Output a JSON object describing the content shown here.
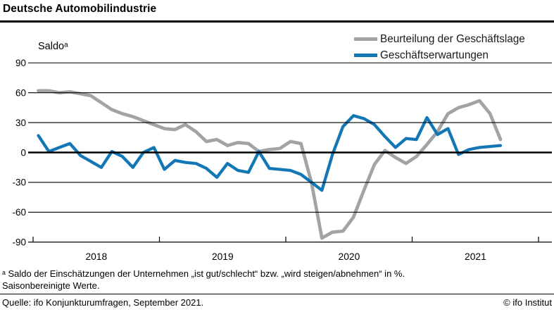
{
  "title": "Deutsche Automobilindustrie",
  "y_axis_label": "Saldoᵃ",
  "legend": [
    {
      "label": "Beurteilung der Geschäftslage",
      "color": "#a3a3a3"
    },
    {
      "label": "Geschäftserwartungen",
      "color": "#1377b6"
    }
  ],
  "footnotes": {
    "line1": "ᵃ Saldo der Einschätzungen der Unternehmen „ist gut/schlecht“ bzw. „wird steigen/abnehmen“ in %.",
    "line2": "Saisonbereinigte Werte."
  },
  "source": "Quelle: ifo Konjunkturumfragen, September 2021.",
  "copyright": "© ifo Institut",
  "chart_data": {
    "type": "line",
    "title": "Deutsche Automobilindustrie",
    "ylabel": "Saldo",
    "ylim": [
      -90,
      90
    ],
    "y_ticks": [
      90,
      60,
      30,
      0,
      -30,
      -60,
      -90
    ],
    "x_tick_labels": [
      "2018",
      "2019",
      "2020",
      "2021"
    ],
    "x_unit": "month",
    "x_start": "2018-01",
    "x_end": "2021-09",
    "grid": "horizontal-black",
    "legend_position": "top-right",
    "series": [
      {
        "name": "Beurteilung der Geschäftslage",
        "color": "#a3a3a3",
        "values": [
          62,
          62,
          60,
          61,
          59,
          57,
          50,
          43,
          39,
          36,
          32,
          28,
          24,
          23,
          28,
          21,
          11,
          13,
          7,
          10,
          9,
          1,
          3,
          4,
          11,
          9,
          -30,
          -86,
          -80,
          -79,
          -65,
          -38,
          -12,
          2,
          -5,
          -11,
          -4,
          8,
          21,
          39,
          45,
          48,
          52,
          39,
          13
        ]
      },
      {
        "name": "Geschäftserwartungen",
        "color": "#1377b6",
        "values": [
          17,
          1,
          5,
          9,
          -3,
          -9,
          -15,
          1,
          -4,
          -15,
          0,
          5,
          -17,
          -8,
          -10,
          -11,
          -16,
          -25,
          -11,
          -18,
          -20,
          1,
          -16,
          -17,
          -18,
          -22,
          -30,
          -38,
          -2,
          26,
          37,
          34,
          28,
          16,
          5,
          14,
          13,
          35,
          18,
          24,
          -2,
          3,
          5,
          6,
          7
        ]
      }
    ]
  }
}
